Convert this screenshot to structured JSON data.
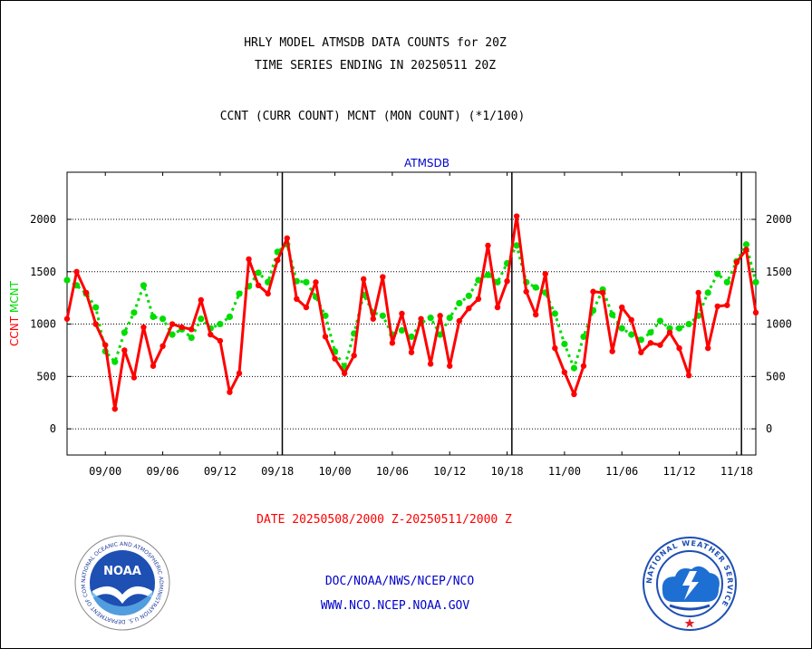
{
  "header": {
    "title_line1": "HRLY MODEL ATMSDB DATA COUNTS for 20Z",
    "title_line2": "TIME SERIES ENDING IN 20250511 20Z",
    "subtitle": "CCNT (CURR COUNT) MCNT (MON COUNT) (*1/100)"
  },
  "chart_data": {
    "type": "line",
    "title": "ATMSDB",
    "ylabel_series1": "CCNT",
    "ylabel_series2": "MCNT",
    "ylim": [
      -250,
      2450
    ],
    "yticks": [
      0,
      500,
      1000,
      1500,
      2000
    ],
    "grid": true,
    "xlabel": "DATE 20250508/2000 Z-20250511/2000 Z",
    "x_tick_labels": [
      "09/00",
      "09/06",
      "09/12",
      "09/18",
      "10/00",
      "10/06",
      "10/12",
      "10/18",
      "11/00",
      "11/06",
      "11/12",
      "11/18"
    ],
    "x_tick_hours": [
      4,
      10,
      16,
      22,
      28,
      34,
      40,
      46,
      52,
      58,
      64,
      70
    ],
    "day_boundaries_hours": [
      22.5,
      46.5,
      70.5
    ],
    "series": [
      {
        "name": "CCNT",
        "color": "#ff0000",
        "values": [
          1050,
          1500,
          1300,
          1000,
          800,
          190,
          750,
          490,
          970,
          600,
          790,
          1000,
          970,
          950,
          1230,
          900,
          840,
          350,
          530,
          1620,
          1370,
          1290,
          1610,
          1820,
          1240,
          1160,
          1400,
          880,
          670,
          530,
          700,
          1430,
          1050,
          1450,
          820,
          1100,
          730,
          1050,
          620,
          1080,
          600,
          1030,
          1150,
          1240,
          1750,
          1160,
          1410,
          2030,
          1310,
          1090,
          1480,
          770,
          540,
          330,
          600,
          1310,
          1300,
          740,
          1160,
          1040,
          730,
          820,
          800,
          920,
          770,
          510,
          1300,
          770,
          1170,
          1180,
          1590,
          1710,
          1110
        ]
      },
      {
        "name": "MCNT",
        "color": "#00dd00",
        "values": [
          1420,
          1370,
          1290,
          1160,
          740,
          640,
          920,
          1110,
          1370,
          1070,
          1050,
          900,
          950,
          870,
          1050,
          960,
          1000,
          1070,
          1290,
          1360,
          1490,
          1400,
          1690,
          1760,
          1410,
          1400,
          1260,
          1080,
          740,
          590,
          910,
          1280,
          1110,
          1080,
          900,
          940,
          880,
          1010,
          1060,
          900,
          1060,
          1200,
          1270,
          1420,
          1470,
          1400,
          1580,
          1750,
          1400,
          1350,
          1300,
          1100,
          810,
          580,
          880,
          1130,
          1330,
          1090,
          960,
          900,
          850,
          920,
          1030,
          960,
          960,
          1000,
          1080,
          1300,
          1480,
          1400,
          1600,
          1760,
          1400
        ]
      }
    ]
  },
  "footer": {
    "line1": "DOC/NOAA/NWS/NCEP/NCO",
    "line2": "WWW.NCO.NCEP.NOAA.GOV",
    "noaa_logo_text": "NOAA",
    "noaa_ring_text": "NATIONAL OCEANIC AND ATMOSPHERIC ADMINISTRATION U.S. DEPARTMENT OF COMMERCE",
    "nws_ring_text": "NATIONAL WEATHER SERVICE"
  },
  "colors": {
    "ccnt": "#ff0000",
    "mcnt": "#00dd00",
    "date_label": "#ff0000",
    "footer_text": "#0000cc",
    "chart_title": "#0000cc"
  }
}
